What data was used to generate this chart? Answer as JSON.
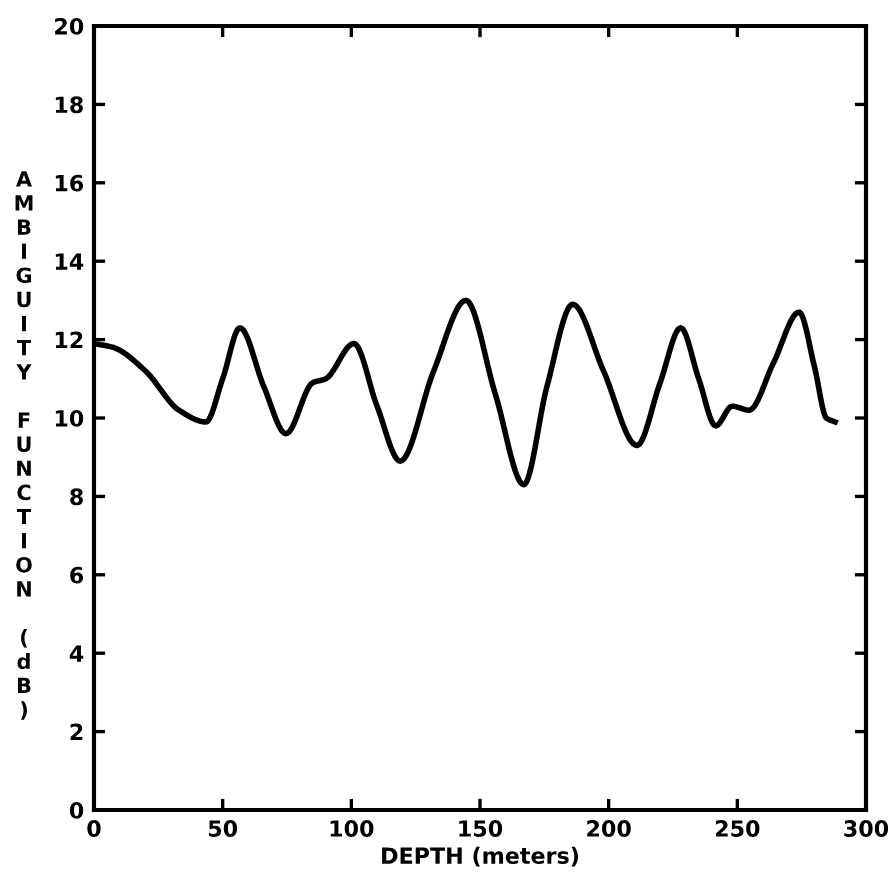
{
  "chart_data": {
    "type": "line",
    "xlabel": "DEPTH (meters)",
    "ylabel": "AMBIGUITY FUNCTION (dB)",
    "xlim": [
      0,
      300
    ],
    "ylim": [
      0,
      20
    ],
    "xticks": [
      0,
      50,
      100,
      150,
      200,
      250,
      300
    ],
    "yticks": [
      0,
      2,
      4,
      6,
      8,
      10,
      12,
      14,
      16,
      18,
      20
    ],
    "grid": false,
    "marker": "none",
    "line_style": "solid",
    "series": [
      {
        "color": "#000000",
        "x": [
          0,
          7.5,
          20,
          33,
          43.5,
          50,
          56.7,
          66,
          74.6,
          85,
          90,
          101,
          110,
          119,
          132,
          144.5,
          156,
          167,
          176,
          186,
          198,
          211,
          220,
          228,
          235,
          241.6,
          248,
          254.6,
          264,
          274,
          280,
          284.6,
          288
        ],
        "values": [
          11.9,
          11.8,
          11.2,
          10.2,
          9.9,
          11.0,
          12.3,
          10.8,
          9.6,
          10.9,
          11.0,
          11.9,
          10.3,
          8.9,
          11.2,
          13.0,
          10.6,
          8.3,
          10.8,
          12.9,
          11.2,
          9.3,
          10.9,
          12.3,
          11.0,
          9.8,
          10.3,
          10.2,
          11.4,
          12.7,
          11.3,
          10.0,
          9.9
        ]
      }
    ]
  }
}
